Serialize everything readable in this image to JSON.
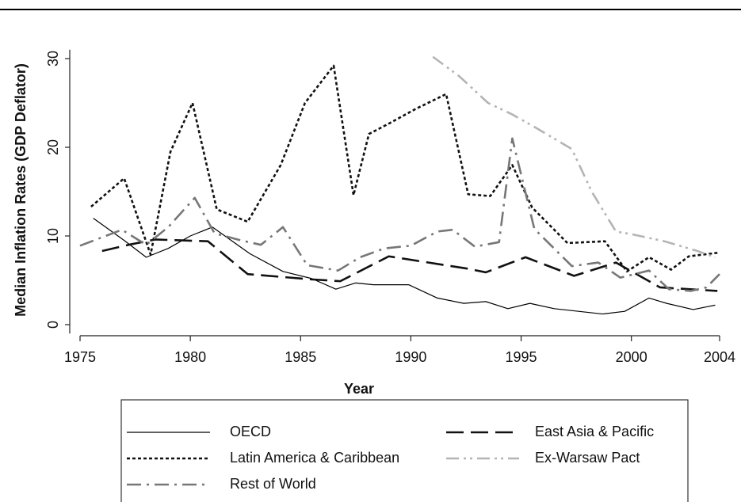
{
  "chart_data": {
    "type": "line",
    "xlabel": "Year",
    "ylabel": "Median Inflation Rates (GDP Deflator)",
    "xlim": [
      1975,
      2004
    ],
    "ylim": [
      -1,
      31
    ],
    "xticks": [
      1975,
      1980,
      1985,
      1990,
      1995,
      2000,
      2004
    ],
    "yticks": [
      0,
      10,
      20,
      30
    ],
    "grid": false,
    "legend": "bottom",
    "series": [
      {
        "name": "OECD",
        "color": "#000000",
        "style": "solid",
        "x": [
          1975.6,
          1977,
          1978,
          1979,
          1980,
          1981,
          1982.7,
          1984.2,
          1985.5,
          1986.6,
          1987.5,
          1988.3,
          1989.9,
          1991.2,
          1992.4,
          1993.4,
          1994.4,
          1995.4,
          1996.5,
          1997.6,
          1998.7,
          1999.7,
          2000.8,
          2001.6,
          2002.8,
          2003.8
        ],
        "values": [
          12,
          9.5,
          7.6,
          8.6,
          10,
          11,
          8,
          6,
          5.2,
          4,
          4.7,
          4.5,
          4.5,
          3,
          2.4,
          2.6,
          1.8,
          2.4,
          1.8,
          1.5,
          1.2,
          1.5,
          3,
          2.4,
          1.7,
          2.2
        ]
      },
      {
        "name": "East Asia & Pacific",
        "color": "#111111",
        "style": "longdash",
        "x": [
          1976,
          1977.2,
          1978.4,
          1979.6,
          1980.8,
          1982.6,
          1985.5,
          1986.8,
          1989,
          1992.6,
          1993.4,
          1995.2,
          1997.4,
          1999.3,
          2001.3,
          2003.9
        ],
        "values": [
          8.3,
          9,
          9.6,
          9.5,
          9.4,
          5.7,
          5.1,
          4.9,
          7.7,
          6.3,
          5.9,
          7.6,
          5.5,
          7,
          4.2,
          3.8
        ]
      },
      {
        "name": "Latin America & Caribbean",
        "color": "#111111",
        "style": "shortdash",
        "x": [
          1975.5,
          1977,
          1978.2,
          1979.1,
          1980.1,
          1981.2,
          1982.6,
          1984.1,
          1985.2,
          1986.5,
          1987.4,
          1988.1,
          1989.1,
          1990.2,
          1991.6,
          1992.6,
          1993.6,
          1994.6,
          1995.5,
          1997.1,
          1998.8,
          1999.8,
          2000.8,
          2001.8,
          2002.6,
          2003.9
        ],
        "values": [
          13.3,
          16.5,
          7.9,
          19.5,
          25,
          13,
          11.6,
          18,
          25,
          29.2,
          14.6,
          21.5,
          22.8,
          24.3,
          26,
          14.7,
          14.5,
          18,
          13.2,
          9.2,
          9.4,
          6,
          7.6,
          6.2,
          7.7,
          8.1
        ]
      },
      {
        "name": "Ex-Warsaw Pact",
        "color": "#b4b4b4",
        "style": "dashdotdot",
        "x": [
          1991,
          1992.2,
          1993.5,
          1994.6,
          1995.6,
          1997.3,
          1998.2,
          1999.3,
          2000,
          2001.5,
          2003,
          2003.8
        ],
        "values": [
          30.2,
          28,
          25,
          23.7,
          22.3,
          19.8,
          15,
          10.5,
          10.2,
          9.4,
          8.3,
          7.6
        ]
      },
      {
        "name": "Rest of World",
        "color": "#777777",
        "style": "dashdot",
        "x": [
          1975,
          1976.9,
          1978,
          1979,
          1980.2,
          1981.1,
          1982.3,
          1983.2,
          1984.2,
          1985.3,
          1986.7,
          1987.7,
          1988.8,
          1990,
          1991.2,
          1991.9,
          1992.9,
          1994,
          1994.6,
          1995.6,
          1997.3,
          1998.5,
          1999.5,
          2000.8,
          2001.7,
          2002.7,
          2003.4,
          2004
        ],
        "values": [
          8.9,
          10.7,
          9,
          11,
          14.3,
          10.3,
          9.5,
          9,
          11,
          6.7,
          6.1,
          7.6,
          8.6,
          8.9,
          10.5,
          10.7,
          8.8,
          9.3,
          21,
          10.8,
          6.6,
          7,
          5.3,
          6.1,
          4,
          3.8,
          4.2,
          5.7
        ]
      }
    ]
  }
}
